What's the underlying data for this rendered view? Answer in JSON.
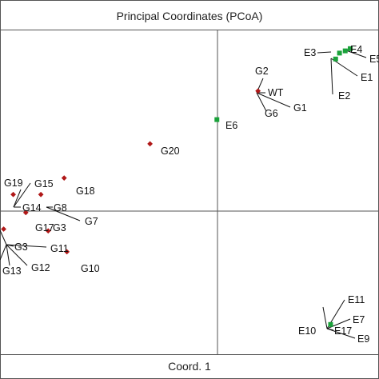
{
  "chart_data": {
    "type": "scatter",
    "title": "Principal Coordinates (PCoA)",
    "xlabel": "Coord. 1",
    "ylabel": "",
    "xlim": [
      -0.95,
      0.71
    ],
    "ylim": [
      -0.72,
      0.75
    ],
    "grid": false,
    "legend": "none",
    "colors": {
      "G": "#b01818",
      "E": "#1aa23a",
      "WT": "#8a1a1a"
    },
    "points": [
      {
        "label": "E3",
        "group": "E",
        "x": 0.537,
        "y": 0.647
      },
      {
        "label": "E4",
        "group": "E",
        "x": 0.562,
        "y": 0.657
      },
      {
        "label": "E5",
        "group": "E",
        "x": 0.584,
        "y": 0.667
      },
      {
        "label": "E1",
        "group": "E",
        "x": 0.52,
        "y": 0.62
      },
      {
        "label": "E2",
        "group": "E",
        "x": 0.52,
        "y": 0.62
      },
      {
        "label": "G2",
        "group": "G",
        "x": 0.18,
        "y": 0.475
      },
      {
        "label": "WT",
        "group": "WT",
        "x": 0.18,
        "y": 0.475
      },
      {
        "label": "G1",
        "group": "G",
        "x": 0.18,
        "y": 0.475
      },
      {
        "label": "G6",
        "group": "G",
        "x": 0.18,
        "y": 0.475
      },
      {
        "label": "E6",
        "group": "E",
        "x": 0.0,
        "y": 0.345
      },
      {
        "label": "G20",
        "group": "G",
        "x": -0.293,
        "y": 0.235
      },
      {
        "label": "G19",
        "group": "G",
        "x": -0.892,
        "y": 0.005
      },
      {
        "label": "G15",
        "group": "G",
        "x": -0.892,
        "y": 0.005
      },
      {
        "label": "G14",
        "group": "G",
        "x": -0.892,
        "y": 0.005
      },
      {
        "label": "G18",
        "group": "G",
        "x": -0.669,
        "y": 0.08
      },
      {
        "label": "G8",
        "group": "G",
        "x": -0.771,
        "y": 0.005
      },
      {
        "label": "G7",
        "group": "G",
        "x": -0.771,
        "y": 0.005
      },
      {
        "label": "G17",
        "group": "G",
        "x": -0.837,
        "y": -0.077
      },
      {
        "label": "G3",
        "group": "G",
        "x": -0.837,
        "y": -0.077
      },
      {
        "label": "G3",
        "group": "G",
        "x": -0.934,
        "y": -0.152
      },
      {
        "label": "G13",
        "group": "G",
        "x": -0.934,
        "y": -0.152
      },
      {
        "label": "G12",
        "group": "G",
        "x": -0.934,
        "y": -0.152
      },
      {
        "label": "G11",
        "group": "G",
        "x": -0.739,
        "y": -0.16
      },
      {
        "label": "G10",
        "group": "G",
        "x": -0.657,
        "y": -0.255
      },
      {
        "label": "E11",
        "group": "E",
        "x": 0.498,
        "y": -0.585
      },
      {
        "label": "E7",
        "group": "E",
        "x": 0.498,
        "y": -0.585
      },
      {
        "label": "E10",
        "group": "E",
        "x": 0.498,
        "y": -0.585
      },
      {
        "label": "E17",
        "group": "E",
        "x": 0.498,
        "y": -0.585
      },
      {
        "label": "E9",
        "group": "E",
        "x": 0.498,
        "y": -0.585
      }
    ]
  }
}
